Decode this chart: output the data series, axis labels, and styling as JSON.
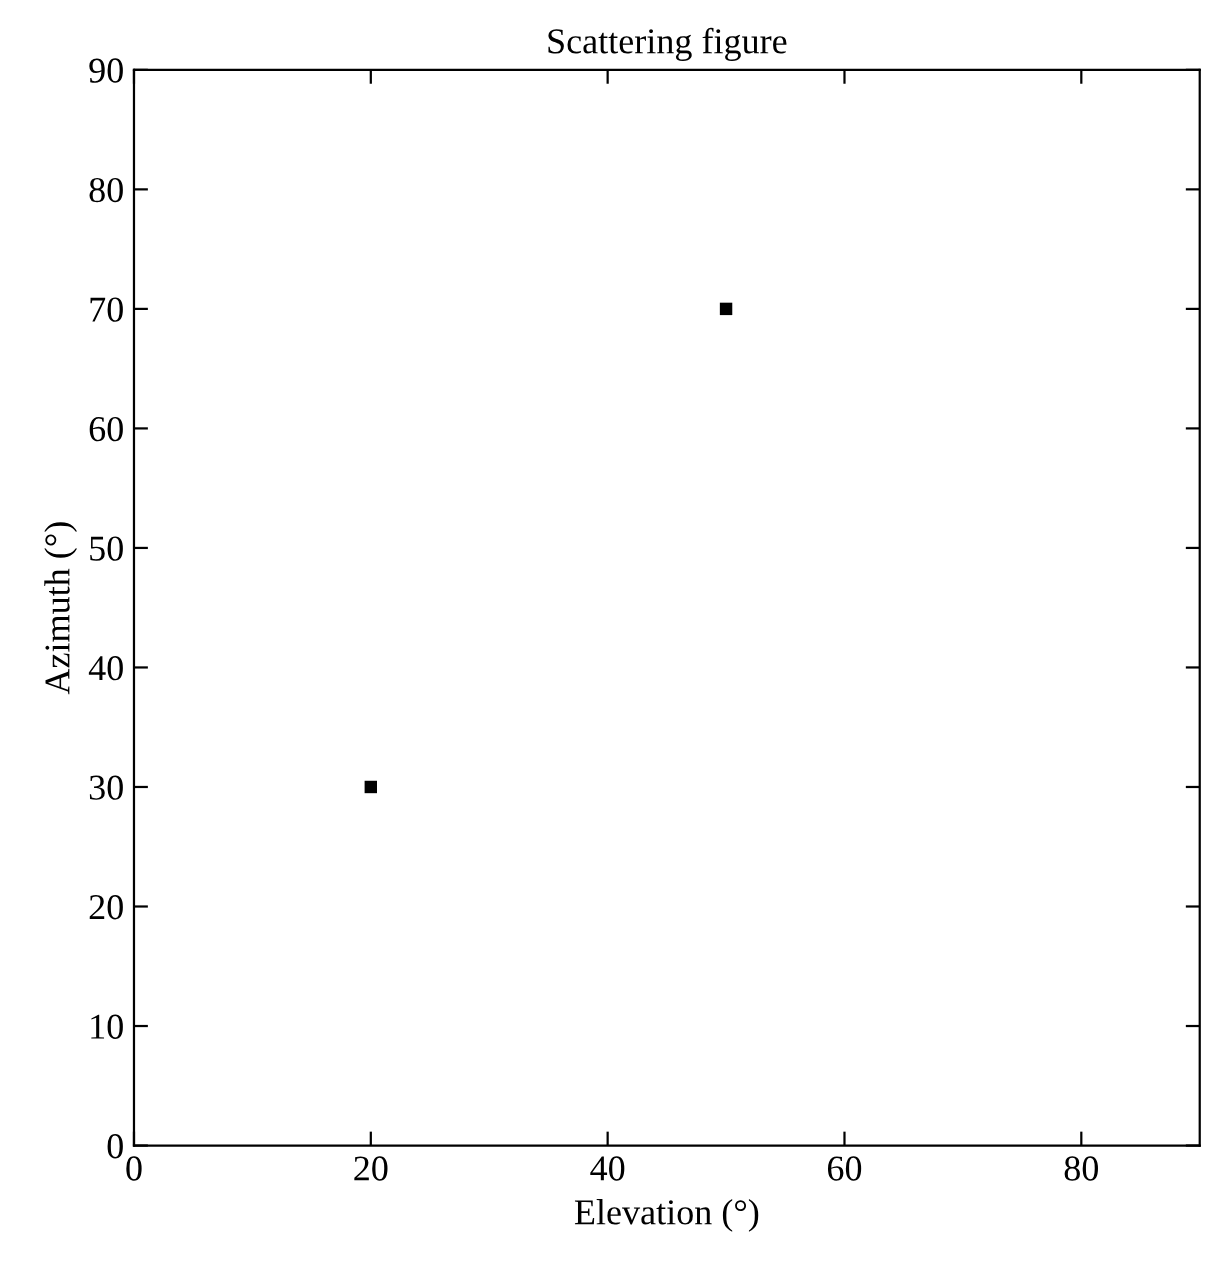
{
  "chart_data": {
    "type": "scatter",
    "title": "Scattering figure",
    "xlabel": "Elevation (°)",
    "ylabel": "Azimuth (°)",
    "x": [
      20,
      50
    ],
    "values": [
      30,
      70
    ],
    "color": "#000000",
    "marker": "square",
    "xlim": [
      0,
      90
    ],
    "xticks": [
      0,
      20,
      40,
      60,
      80
    ],
    "ylim": [
      0,
      90
    ],
    "yticks": [
      0,
      10,
      20,
      30,
      40,
      50,
      60,
      70,
      80,
      90
    ],
    "grid": false
  }
}
